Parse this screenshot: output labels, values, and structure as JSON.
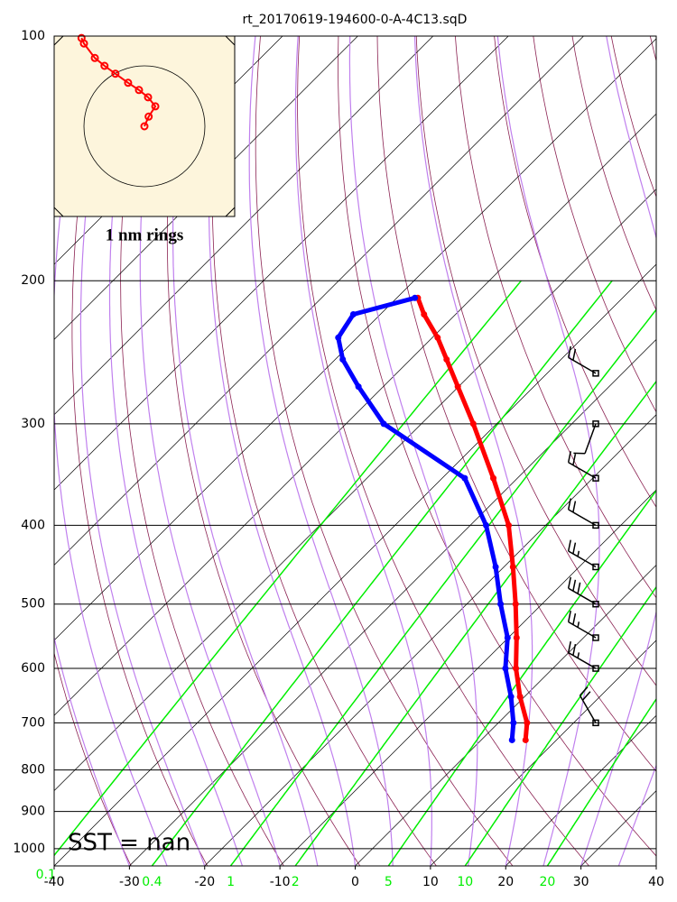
{
  "chart_data": {
    "type": "skewt",
    "title": "rt_20170619-194600-0-A-4C13.sqD",
    "annotation": "SST =  nan",
    "xlim": [
      -40,
      40
    ],
    "xticks": [
      -40,
      -30,
      -20,
      -10,
      0,
      10,
      20,
      30,
      40
    ],
    "ylim": [
      1050,
      100
    ],
    "yticks": [
      100,
      200,
      300,
      400,
      500,
      600,
      700,
      800,
      900,
      1000
    ],
    "log_y": true,
    "grid": true,
    "mixing_ratio_color": "#00ee00",
    "mixing_ratios": [
      0.1,
      0.4,
      1,
      2,
      5,
      10,
      20
    ],
    "pressure": [
      735,
      700,
      650,
      600,
      550,
      500,
      450,
      400,
      350,
      300,
      270,
      250,
      235,
      220,
      210
    ],
    "series": [
      {
        "color": "#ff0000",
        "values": [
          5.9,
          3.8,
          -0.6,
          -4.9,
          -8.9,
          -13.5,
          -18.8,
          -24.9,
          -33.2,
          -43.1,
          -50.1,
          -55.2,
          -59.3,
          -64.2,
          -67.2
        ]
      },
      {
        "color": "#0000ff",
        "values": [
          4.1,
          2.0,
          -1.8,
          -6.3,
          -10.1,
          -15.5,
          -21.1,
          -27.9,
          -37.0,
          -55.0,
          -63.3,
          -69.0,
          -72.5,
          -73.6,
          -67.6
        ]
      }
    ],
    "wind": {
      "pressure": [
        260,
        300,
        350,
        400,
        450,
        500,
        550,
        600,
        700
      ],
      "speed": [
        20,
        10,
        20,
        20,
        25,
        30,
        25,
        25,
        20
      ],
      "direction": [
        300,
        200,
        300,
        300,
        300,
        300,
        300,
        300,
        330
      ]
    },
    "hodograph": {
      "caption": "1 nm rings",
      "color": "#ff0000",
      "x": [
        -1.04,
        -1.0,
        -0.82,
        -0.66,
        -0.48,
        -0.27,
        -0.09,
        0.06,
        0.18,
        0.07,
        0
      ],
      "y": [
        1.46,
        1.37,
        1.13,
        1.0,
        0.87,
        0.72,
        0.6,
        0.48,
        0.33,
        0.16,
        0
      ]
    }
  }
}
